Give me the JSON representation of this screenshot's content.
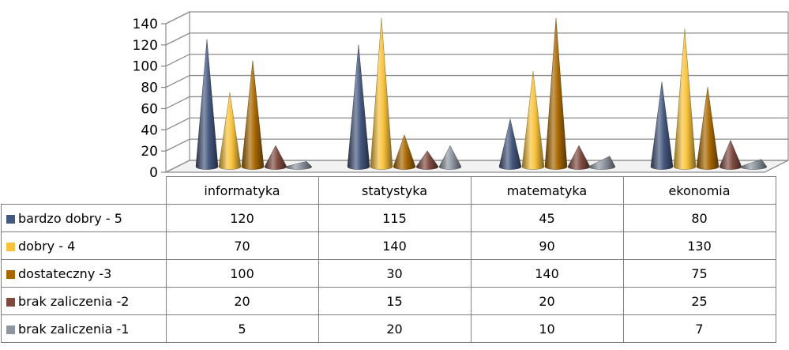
{
  "chart_data": {
    "type": "bar",
    "style": "3d-cone",
    "categories": [
      "informatyka",
      "statystyka",
      "matematyka",
      "ekonomia"
    ],
    "series": [
      {
        "name": "bardzo dobry - 5",
        "color": "#44577e",
        "values": [
          120,
          115,
          45,
          80
        ]
      },
      {
        "name": "dobry - 4",
        "color": "#f8c23a",
        "values": [
          70,
          140,
          90,
          130
        ]
      },
      {
        "name": "dostateczny -3",
        "color": "#a86700",
        "values": [
          100,
          30,
          140,
          75
        ]
      },
      {
        "name": "brak zaliczenia -2",
        "color": "#7e4a40",
        "values": [
          20,
          15,
          20,
          25
        ]
      },
      {
        "name": "brak zaliczenia -1",
        "color": "#8e969f",
        "values": [
          5,
          20,
          10,
          7
        ]
      }
    ],
    "y_ticks": [
      "0",
      "20",
      "40",
      "60",
      "80",
      "100",
      "120",
      "140"
    ],
    "ylim": [
      0,
      140
    ],
    "grid": true,
    "legend": "data-table-below"
  }
}
